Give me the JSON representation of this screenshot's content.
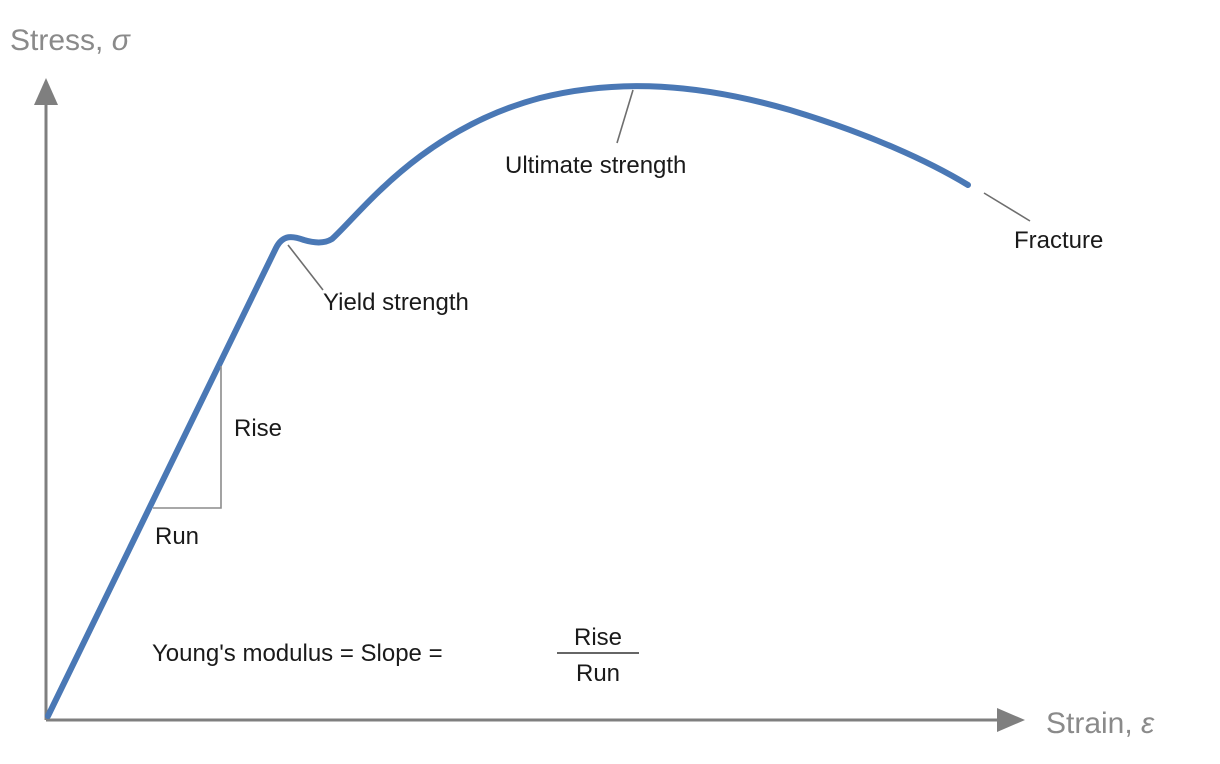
{
  "axes": {
    "y_title": "Stress, ",
    "y_symbol": "σ",
    "x_title": "Strain, ",
    "x_symbol": "ε"
  },
  "annotations": {
    "ultimate_strength": "Ultimate strength",
    "fracture": "Fracture",
    "yield_strength": "Yield strength",
    "rise": "Rise",
    "run": "Run"
  },
  "formula": {
    "lhs": "Young's modulus = Slope =",
    "numerator": "Rise",
    "denominator": "Run"
  },
  "colors": {
    "curve": "#4a78b5",
    "axes": "#7f7f7f",
    "text": "#1a1a1a"
  }
}
